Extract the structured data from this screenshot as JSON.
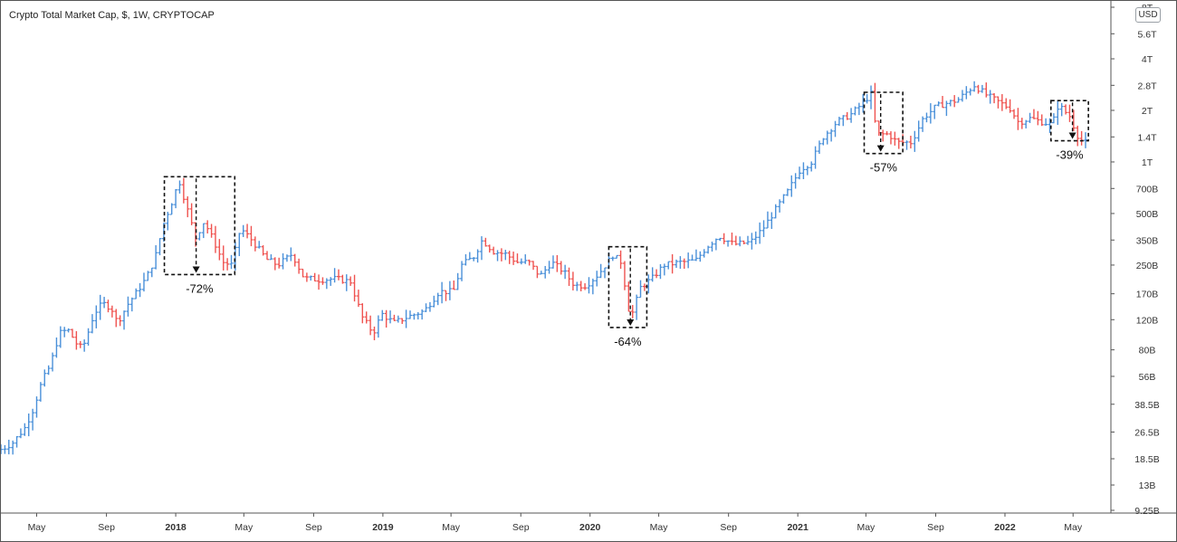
{
  "header": {
    "title": "Crypto Total Market Cap, $, 1W, CRYPTOCAP",
    "unit": "USD"
  },
  "chart_data": {
    "type": "candlestick",
    "title": "Crypto Total Market Cap, $, 1W, CRYPTOCAP",
    "y_scale": "log",
    "y_unit": "USD",
    "y_ticks": [
      {
        "label": "8T",
        "value": 8000000000000.0
      },
      {
        "label": "5.6T",
        "value": 5600000000000.0
      },
      {
        "label": "4T",
        "value": 4000000000000.0
      },
      {
        "label": "2.8T",
        "value": 2800000000000.0
      },
      {
        "label": "2T",
        "value": 2000000000000.0
      },
      {
        "label": "1.4T",
        "value": 1400000000000.0
      },
      {
        "label": "1T",
        "value": 1000000000000.0
      },
      {
        "label": "700B",
        "value": 700000000000.0
      },
      {
        "label": "500B",
        "value": 500000000000.0
      },
      {
        "label": "350B",
        "value": 350000000000.0
      },
      {
        "label": "250B",
        "value": 250000000000.0
      },
      {
        "label": "170B",
        "value": 170000000000.0
      },
      {
        "label": "120B",
        "value": 120000000000.0
      },
      {
        "label": "80B",
        "value": 80000000000.0
      },
      {
        "label": "56B",
        "value": 56000000000.0
      },
      {
        "label": "38.5B",
        "value": 38500000000.0
      },
      {
        "label": "26.5B",
        "value": 26500000000.0
      },
      {
        "label": "18.5B",
        "value": 18500000000.0
      },
      {
        "label": "13B",
        "value": 13000000000.0
      },
      {
        "label": "9.25B",
        "value": 9250000000.0
      }
    ],
    "x_ticks": [
      {
        "label": "May",
        "date": "2017-05-01",
        "bold": false
      },
      {
        "label": "Sep",
        "date": "2017-09-01",
        "bold": false
      },
      {
        "label": "2018",
        "date": "2018-01-01",
        "bold": true
      },
      {
        "label": "May",
        "date": "2018-05-01",
        "bold": false
      },
      {
        "label": "Sep",
        "date": "2018-09-01",
        "bold": false
      },
      {
        "label": "2019",
        "date": "2019-01-01",
        "bold": true
      },
      {
        "label": "May",
        "date": "2019-05-01",
        "bold": false
      },
      {
        "label": "Sep",
        "date": "2019-09-01",
        "bold": false
      },
      {
        "label": "2020",
        "date": "2020-01-01",
        "bold": true
      },
      {
        "label": "May",
        "date": "2020-05-01",
        "bold": false
      },
      {
        "label": "Sep",
        "date": "2020-09-01",
        "bold": false
      },
      {
        "label": "2021",
        "date": "2021-01-01",
        "bold": true
      },
      {
        "label": "May",
        "date": "2021-05-01",
        "bold": false
      },
      {
        "label": "Sep",
        "date": "2021-09-01",
        "bold": false
      },
      {
        "label": "2022",
        "date": "2022-01-01",
        "bold": true
      },
      {
        "label": "May",
        "date": "2022-05-01",
        "bold": false
      }
    ],
    "ylim": [
      9250000000.0,
      8000000000000.0
    ],
    "xlim": [
      "2017-02-27",
      "2022-05-23"
    ],
    "series_close_path": [
      [
        "2017-03-01",
        21000000000.0
      ],
      [
        "2017-03-20",
        23000000000.0
      ],
      [
        "2017-04-10",
        28000000000.0
      ],
      [
        "2017-04-25",
        36000000000.0
      ],
      [
        "2017-05-10",
        52000000000.0
      ],
      [
        "2017-05-25",
        65000000000.0
      ],
      [
        "2017-06-10",
        100000000000.0
      ],
      [
        "2017-06-25",
        105000000000.0
      ],
      [
        "2017-07-15",
        82000000000.0
      ],
      [
        "2017-07-25",
        88000000000.0
      ],
      [
        "2017-08-10",
        130000000000.0
      ],
      [
        "2017-08-25",
        150000000000.0
      ],
      [
        "2017-09-10",
        140000000000.0
      ],
      [
        "2017-09-20",
        115000000000.0
      ],
      [
        "2017-10-10",
        150000000000.0
      ],
      [
        "2017-10-25",
        175000000000.0
      ],
      [
        "2017-11-10",
        210000000000.0
      ],
      [
        "2017-11-25",
        270000000000.0
      ],
      [
        "2017-12-10",
        430000000000.0
      ],
      [
        "2017-12-25",
        580000000000.0
      ],
      [
        "2018-01-07",
        780000000000.0
      ],
      [
        "2018-01-20",
        550000000000.0
      ],
      [
        "2018-02-05",
        360000000000.0
      ],
      [
        "2018-02-20",
        450000000000.0
      ],
      [
        "2018-03-10",
        340000000000.0
      ],
      [
        "2018-03-25",
        260000000000.0
      ],
      [
        "2018-04-10",
        250000000000.0
      ],
      [
        "2018-04-25",
        410000000000.0
      ],
      [
        "2018-05-15",
        350000000000.0
      ],
      [
        "2018-06-10",
        270000000000.0
      ],
      [
        "2018-06-30",
        250000000000.0
      ],
      [
        "2018-07-25",
        290000000000.0
      ],
      [
        "2018-08-15",
        210000000000.0
      ],
      [
        "2018-09-10",
        205000000000.0
      ],
      [
        "2018-10-10",
        208000000000.0
      ],
      [
        "2018-11-05",
        200000000000.0
      ],
      [
        "2018-11-25",
        125000000000.0
      ],
      [
        "2018-12-15",
        100000000000.0
      ],
      [
        "2018-12-30",
        130000000000.0
      ],
      [
        "2019-01-20",
        115000000000.0
      ],
      [
        "2019-02-15",
        125000000000.0
      ],
      [
        "2019-03-15",
        135000000000.0
      ],
      [
        "2019-04-10",
        175000000000.0
      ],
      [
        "2019-05-05",
        175000000000.0
      ],
      [
        "2019-05-20",
        250000000000.0
      ],
      [
        "2019-06-10",
        280000000000.0
      ],
      [
        "2019-06-25",
        350000000000.0
      ],
      [
        "2019-07-15",
        300000000000.0
      ],
      [
        "2019-08-05",
        290000000000.0
      ],
      [
        "2019-08-25",
        260000000000.0
      ],
      [
        "2019-09-15",
        260000000000.0
      ],
      [
        "2019-10-05",
        215000000000.0
      ],
      [
        "2019-10-25",
        260000000000.0
      ],
      [
        "2019-11-15",
        230000000000.0
      ],
      [
        "2019-12-05",
        190000000000.0
      ],
      [
        "2019-12-25",
        190000000000.0
      ],
      [
        "2020-01-15",
        220000000000.0
      ],
      [
        "2020-02-10",
        285000000000.0
      ],
      [
        "2020-02-25",
        260000000000.0
      ],
      [
        "2020-03-12",
        120000000000.0
      ],
      [
        "2020-03-30",
        185000000000.0
      ],
      [
        "2020-04-20",
        210000000000.0
      ],
      [
        "2020-05-10",
        250000000000.0
      ],
      [
        "2020-06-10",
        260000000000.0
      ],
      [
        "2020-07-05",
        265000000000.0
      ],
      [
        "2020-07-25",
        320000000000.0
      ],
      [
        "2020-08-15",
        370000000000.0
      ],
      [
        "2020-09-10",
        330000000000.0
      ],
      [
        "2020-10-10",
        340000000000.0
      ],
      [
        "2020-11-01",
        410000000000.0
      ],
      [
        "2020-11-25",
        540000000000.0
      ],
      [
        "2020-12-15",
        680000000000.0
      ],
      [
        "2021-01-05",
        900000000000.0
      ],
      [
        "2021-01-25",
        1000000000000.0
      ],
      [
        "2021-02-15",
        1400000000000.0
      ],
      [
        "2021-03-10",
        1700000000000.0
      ],
      [
        "2021-04-05",
        1900000000000.0
      ],
      [
        "2021-04-25",
        2200000000000.0
      ],
      [
        "2021-05-10",
        2500000000000.0
      ],
      [
        "2021-05-20",
        1450000000000.0
      ],
      [
        "2021-06-10",
        1450000000000.0
      ],
      [
        "2021-06-25",
        1300000000000.0
      ],
      [
        "2021-07-20",
        1300000000000.0
      ],
      [
        "2021-08-10",
        1800000000000.0
      ],
      [
        "2021-09-01",
        2100000000000.0
      ],
      [
        "2021-09-20",
        2200000000000.0
      ],
      [
        "2021-10-10",
        2300000000000.0
      ],
      [
        "2021-11-08",
        2800000000000.0
      ],
      [
        "2021-11-30",
        2450000000000.0
      ],
      [
        "2021-12-20",
        2250000000000.0
      ],
      [
        "2022-01-10",
        2050000000000.0
      ],
      [
        "2022-01-25",
        1700000000000.0
      ],
      [
        "2022-02-15",
        1800000000000.0
      ],
      [
        "2022-03-10",
        1700000000000.0
      ],
      [
        "2022-03-25",
        1650000000000.0
      ],
      [
        "2022-04-05",
        2150000000000.0
      ],
      [
        "2022-04-25",
        1850000000000.0
      ],
      [
        "2022-05-10",
        1400000000000.0
      ],
      [
        "2022-05-20",
        1300000000000.0
      ]
    ],
    "annotations": [
      {
        "label": "-72%",
        "box_dates": [
          "2017-12-12",
          "2018-04-15"
        ],
        "box_range": [
          220000000000.0,
          820000000000.0
        ],
        "arrow_date": "2018-02-06"
      },
      {
        "label": "-64%",
        "box_dates": [
          "2020-02-03",
          "2020-04-10"
        ],
        "box_range": [
          108000000000.0,
          320000000000.0
        ],
        "arrow_date": "2020-03-12"
      },
      {
        "label": "-57%",
        "box_dates": [
          "2021-04-28",
          "2021-07-05"
        ],
        "box_range": [
          1120000000000.0,
          2550000000000.0
        ],
        "arrow_date": "2021-05-27"
      },
      {
        "label": "-39%",
        "box_dates": [
          "2022-03-23",
          "2022-05-28"
        ],
        "box_range": [
          1330000000000.0,
          2280000000000.0
        ],
        "arrow_date": "2022-04-30"
      }
    ],
    "colors": {
      "up": "#4a90d9",
      "down": "#ef5350",
      "text": "#333333",
      "axis": "#555555"
    },
    "grid": false
  }
}
